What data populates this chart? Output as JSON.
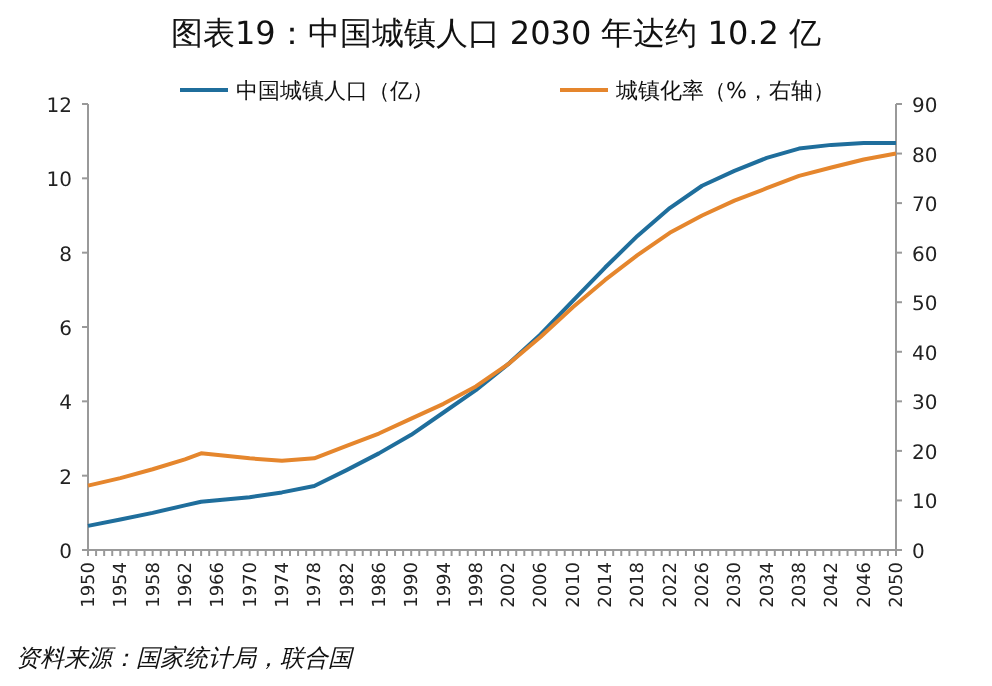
{
  "chart_data": {
    "type": "line",
    "title": "图表19：中国城镇人口 2030 年达约 10.2 亿",
    "annotations": [
      "资料来源：国家统计局，联合国"
    ],
    "xlim": [
      1950,
      2050
    ],
    "xticks": [
      1950,
      1954,
      1958,
      1962,
      1966,
      1970,
      1974,
      1978,
      1982,
      1986,
      1990,
      1994,
      1998,
      2002,
      2006,
      2010,
      2014,
      2018,
      2022,
      2026,
      2030,
      2034,
      2038,
      2042,
      2046,
      2050
    ],
    "ylim": [
      0,
      12
    ],
    "yticks": [
      0,
      2,
      4,
      6,
      8,
      10,
      12
    ],
    "y2lim": [
      0,
      90
    ],
    "y2ticks": [
      0,
      10,
      20,
      30,
      40,
      50,
      60,
      70,
      80,
      90
    ],
    "legend": "top",
    "grid": false,
    "series": [
      {
        "name": "中国城镇人口（亿）",
        "color": "#1f6e9c",
        "x": [
          1950,
          1954,
          1958,
          1962,
          1964,
          1970,
          1974,
          1978,
          1982,
          1986,
          1990,
          1994,
          1998,
          2002,
          2006,
          2010,
          2014,
          2018,
          2022,
          2026,
          2030,
          2034,
          2038,
          2042,
          2046,
          2050
        ],
        "values": [
          0.65,
          0.82,
          1.0,
          1.2,
          1.3,
          1.42,
          1.55,
          1.72,
          2.15,
          2.6,
          3.1,
          3.7,
          4.3,
          5.0,
          5.8,
          6.7,
          7.6,
          8.45,
          9.2,
          9.8,
          10.2,
          10.55,
          10.8,
          10.9,
          10.95,
          10.95
        ]
      },
      {
        "name": "城镇化率（%，右轴）",
        "color": "#e5862d",
        "axis": "y2",
        "x": [
          1950,
          1954,
          1958,
          1962,
          1964,
          1970,
          1974,
          1978,
          1982,
          1986,
          1990,
          1994,
          1998,
          2002,
          2006,
          2010,
          2014,
          2018,
          2022,
          2026,
          2030,
          2034,
          2038,
          2042,
          2046,
          2050
        ],
        "values": [
          13,
          14.5,
          16.3,
          18.3,
          19.5,
          18.5,
          18,
          18.5,
          21,
          23.5,
          26.5,
          29.5,
          33,
          37.5,
          43,
          49,
          54.5,
          59.5,
          64,
          67.5,
          70.5,
          73,
          75.5,
          77.2,
          78.8,
          80
        ]
      }
    ]
  }
}
